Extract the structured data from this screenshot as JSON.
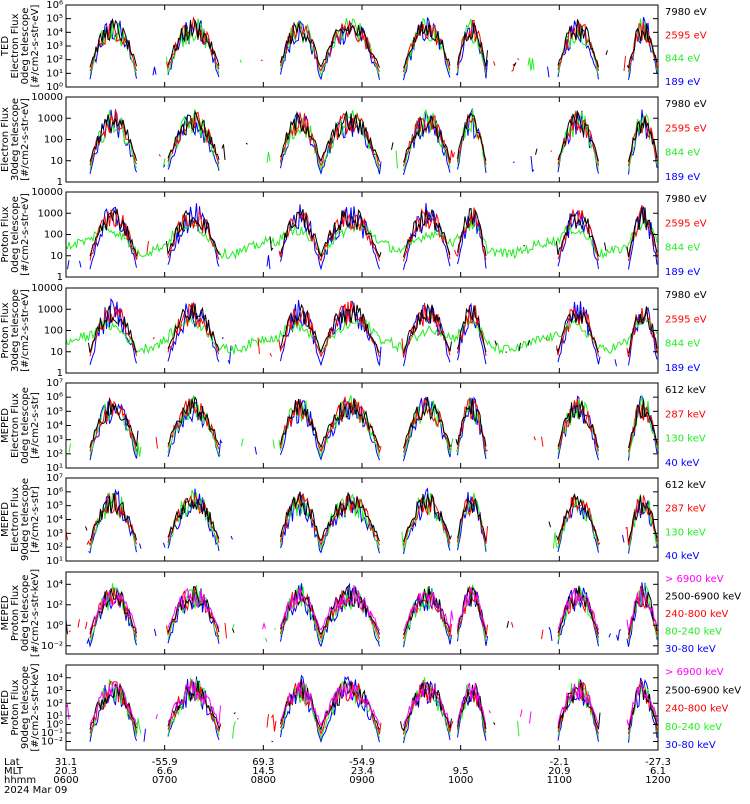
{
  "date_label": "2024 Mar 09",
  "footer_labels": {
    "lat": "Lat",
    "mlt": "MLT",
    "hhmm": "hhmm"
  },
  "time_axis": {
    "lat": [
      "31.1",
      "-55.9",
      "69.3",
      "-54.9",
      "-2.1",
      "-27.3"
    ],
    "lat_positions_hhmm": [
      "0600",
      "0700",
      "0800",
      "0900",
      "1000",
      "1100",
      "1200"
    ],
    "lat_values": [
      "31.1",
      "-55.9",
      "69.3",
      "-54.9",
      "-2.1",
      "-27.3"
    ],
    "mlt_values": [
      "20.3",
      "6.6",
      "14.5",
      "23.4",
      "9.5",
      "20.9",
      "6.1"
    ],
    "hhmm_values": [
      "0600",
      "0700",
      "0800",
      "0900",
      "1000",
      "1100",
      "1200"
    ],
    "lat_all": [
      "31.1",
      "-55.9",
      "69.3",
      "-54.9",
      "",
      "-2.1",
      "-27.3"
    ]
  },
  "colors": {
    "black": "#000000",
    "red": "#ff0000",
    "green": "#22ee22",
    "blue": "#0000ff",
    "magenta": "#ff00ff"
  },
  "chart_data": [
    {
      "type": "line",
      "ylog": true,
      "ylim": [
        1,
        1000000
      ],
      "ylabel_lines": [
        "TED",
        "Electron Flux",
        "0deg telescope",
        "[#/cm2-s-str-eV]"
      ],
      "ytick_labels": [
        "10⁰",
        "10¹",
        "10²",
        "10³",
        "10⁴",
        "10⁵",
        "10⁶"
      ],
      "legend": [
        {
          "name": "7980 eV",
          "color": "#000000"
        },
        {
          "name": "2595 eV",
          "color": "#ff0000"
        },
        {
          "name": "844 eV",
          "color": "#22ee22"
        },
        {
          "name": "189 eV",
          "color": "#0000ff"
        }
      ]
    },
    {
      "type": "line",
      "ylog": true,
      "ylim": [
        1,
        10000
      ],
      "ylabel_lines": [
        "Electron Flux",
        "30deg telescope",
        "[#/cm2-s-str-eV]"
      ],
      "ytick_labels": [
        "1",
        "10",
        "100",
        "1000",
        "10000"
      ],
      "legend": [
        {
          "name": "7980 eV",
          "color": "#000000"
        },
        {
          "name": "2595 eV",
          "color": "#ff0000"
        },
        {
          "name": "844 eV",
          "color": "#22ee22"
        },
        {
          "name": "189 eV",
          "color": "#0000ff"
        }
      ]
    },
    {
      "type": "line",
      "ylog": true,
      "ylim": [
        1,
        10000
      ],
      "ylabel_lines": [
        "Proton Flux",
        "0deg telescope",
        "[#/cm2-s-str-eV]"
      ],
      "ytick_labels": [
        "1",
        "10",
        "100",
        "1000",
        "10000"
      ],
      "legend": [
        {
          "name": "7980 eV",
          "color": "#000000"
        },
        {
          "name": "2595 eV",
          "color": "#ff0000"
        },
        {
          "name": "844 eV",
          "color": "#22ee22"
        },
        {
          "name": "189 eV",
          "color": "#0000ff"
        }
      ]
    },
    {
      "type": "line",
      "ylog": true,
      "ylim": [
        1,
        10000
      ],
      "ylabel_lines": [
        "Proton Flux",
        "30deg telescope",
        "[#/cm2-s-str-eV]"
      ],
      "ytick_labels": [
        "1",
        "10",
        "100",
        "1000",
        "10000"
      ],
      "legend": [
        {
          "name": "7980 eV",
          "color": "#000000"
        },
        {
          "name": "2595 eV",
          "color": "#ff0000"
        },
        {
          "name": "844 eV",
          "color": "#22ee22"
        },
        {
          "name": "189 eV",
          "color": "#0000ff"
        }
      ]
    },
    {
      "type": "line",
      "ylog": true,
      "ylim": [
        10,
        10000000
      ],
      "ylabel_lines": [
        "MEPED",
        "Electron Flux",
        "0deg telescope",
        "[#/cm2-s-str]"
      ],
      "ytick_labels": [
        "10¹",
        "10²",
        "10³",
        "10⁴",
        "10⁵",
        "10⁶",
        "10⁷"
      ],
      "legend": [
        {
          "name": "612 keV",
          "color": "#000000"
        },
        {
          "name": "287 keV",
          "color": "#ff0000"
        },
        {
          "name": "130 keV",
          "color": "#22ee22"
        },
        {
          "name": "40 keV",
          "color": "#0000ff"
        }
      ]
    },
    {
      "type": "line",
      "ylog": true,
      "ylim": [
        10,
        10000000
      ],
      "ylabel_lines": [
        "MEPED",
        "Electron Flux",
        "90deg telescope",
        "[#/cm2-s-str]"
      ],
      "ytick_labels": [
        "10¹",
        "10²",
        "10³",
        "10⁴",
        "10⁵",
        "10⁶",
        "10⁷"
      ],
      "legend": [
        {
          "name": "612 keV",
          "color": "#000000"
        },
        {
          "name": "287 keV",
          "color": "#ff0000"
        },
        {
          "name": "130 keV",
          "color": "#22ee22"
        },
        {
          "name": "40 keV",
          "color": "#0000ff"
        }
      ]
    },
    {
      "type": "line",
      "ylog": true,
      "ylim": [
        0.001,
        100000
      ],
      "ylabel_lines": [
        "MEPED",
        "Proton Flux",
        "0deg telescope",
        "[#/cm2-s-str-keV]"
      ],
      "ytick_labels": [
        "10⁻²",
        "10⁰",
        "10²",
        "10⁴"
      ],
      "legend": [
        {
          "name": "> 6900 keV",
          "color": "#ff00ff"
        },
        {
          "name": "2500-6900 keV",
          "color": "#000000"
        },
        {
          "name": "240-800 keV",
          "color": "#ff0000"
        },
        {
          "name": "80-240 keV",
          "color": "#22ee22"
        },
        {
          "name": "30-80 keV",
          "color": "#0000ff"
        }
      ]
    },
    {
      "type": "line",
      "ylog": true,
      "ylim": [
        0.001,
        100000
      ],
      "ylabel_lines": [
        "MEPED",
        "Proton Flux",
        "90deg telescope",
        "[#/cm2-s-str-keV]"
      ],
      "ytick_labels": [
        "10⁻²",
        "10⁻¹",
        "10⁰",
        "10¹",
        "10²",
        "10³",
        "10⁴"
      ],
      "legend": [
        {
          "name": "> 6900 keV",
          "color": "#ff00ff"
        },
        {
          "name": "2500-6900 keV",
          "color": "#000000"
        },
        {
          "name": "240-800 keV",
          "color": "#ff0000"
        },
        {
          "name": "80-240 keV",
          "color": "#22ee22"
        },
        {
          "name": "30-80 keV",
          "color": "#0000ff"
        }
      ]
    }
  ]
}
